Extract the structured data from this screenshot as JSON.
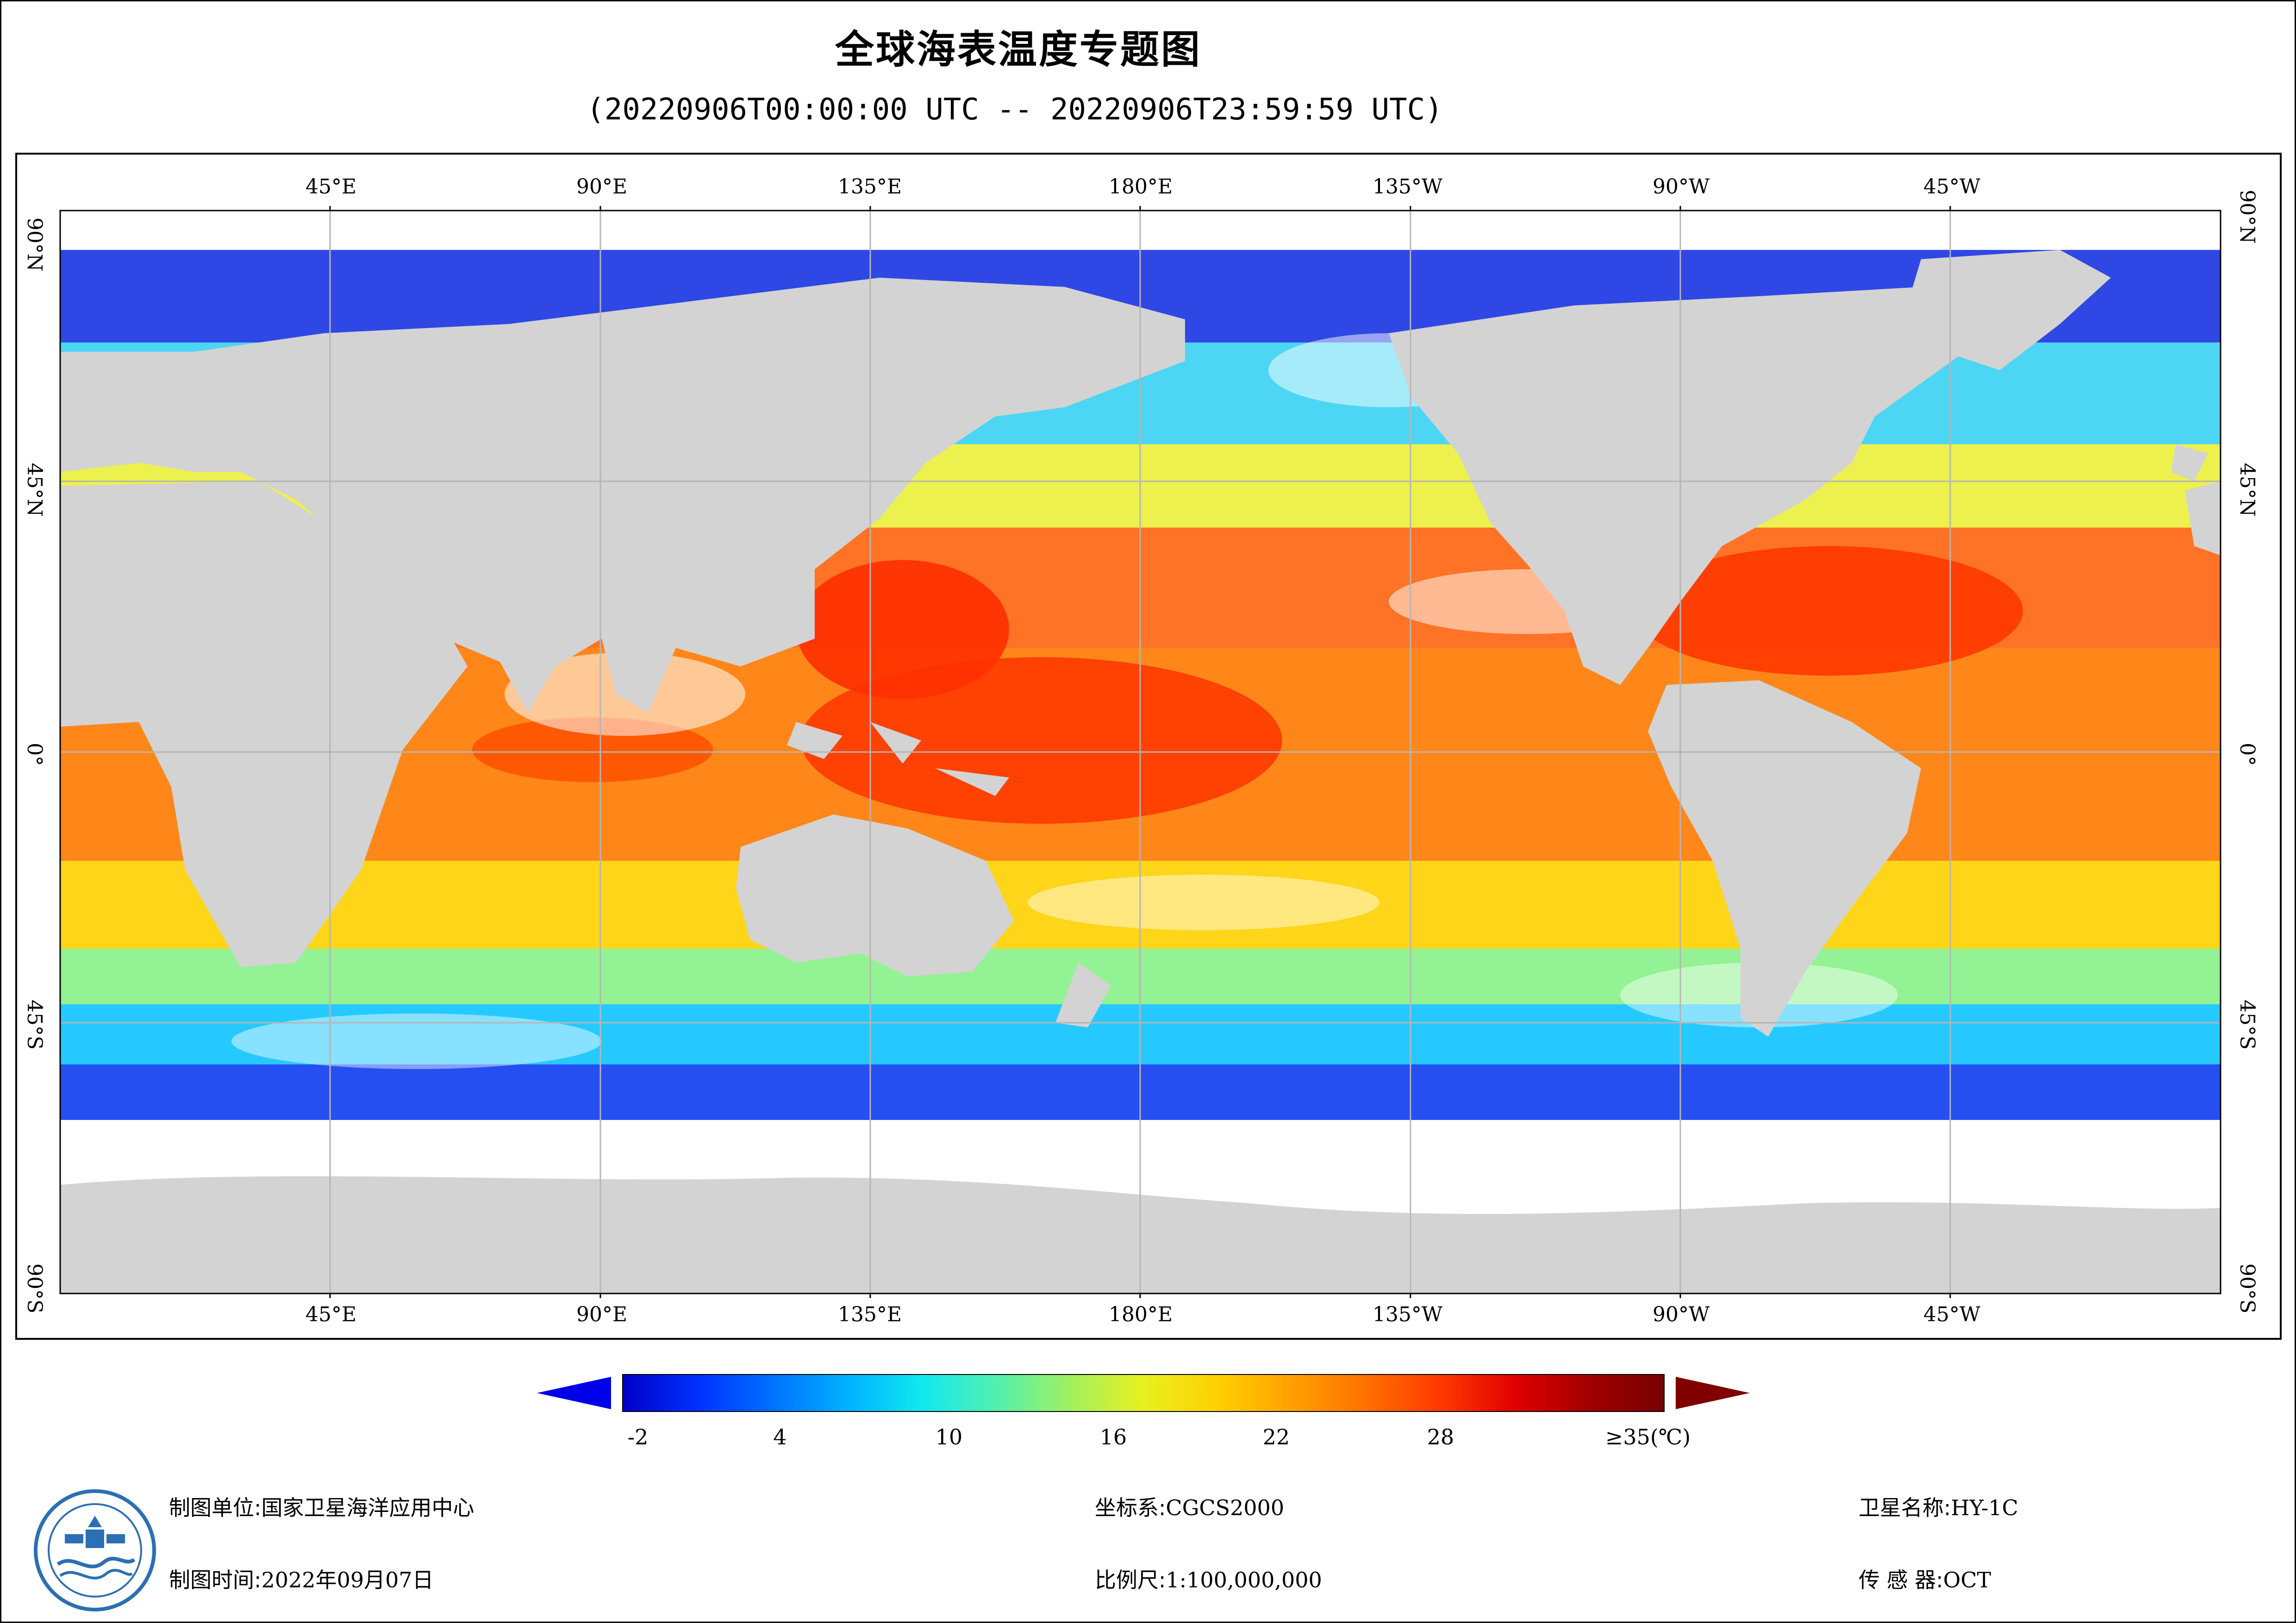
{
  "title": "全球海表温度专题图",
  "subtitle": "(20220906T00:00:00 UTC -- 20220906T23:59:59 UTC)",
  "map": {
    "top_lon_labels": [
      "45°E",
      "90°E",
      "135°E",
      "180°E",
      "135°W",
      "90°W",
      "45°W"
    ],
    "bottom_lon_labels": [
      "45°E",
      "90°E",
      "135°E",
      "180°E",
      "135°W",
      "90°W",
      "45°W"
    ],
    "left_lat_labels": [
      "90°N",
      "45°N",
      "0°",
      "45°S",
      "90°S"
    ],
    "right_lat_labels": [
      "90°N",
      "45°N",
      "0°",
      "45°S",
      "90°S"
    ],
    "land_color": "#d3d3d3",
    "nodata_color": "#ffffff",
    "gridline_color": "#b5b5b5"
  },
  "colorbar": {
    "tick_labels": [
      "-2",
      "4",
      "10",
      "16",
      "22",
      "28",
      "≥35(℃)"
    ],
    "palette": [
      "#0000c8",
      "#0030ff",
      "#0070ff",
      "#00b0ff",
      "#10e8f0",
      "#50f0b0",
      "#a0f060",
      "#e8f020",
      "#ffd000",
      "#ffa000",
      "#ff7000",
      "#ff3800",
      "#e00000",
      "#a00000",
      "#780000"
    ],
    "under_color": "#0000e8",
    "over_color": "#800000"
  },
  "footer": {
    "unit_label": "制图单位:",
    "unit_value": "国家卫星海洋应用中心",
    "time_label": "制图时间:",
    "time_value": "2022年09月07日",
    "crs_label": "坐标系:",
    "crs_value": "CGCS2000",
    "scale_label": "比例尺:",
    "scale_value": "1:100,000,000",
    "satellite_label": "卫星名称:",
    "satellite_value": "HY-1C",
    "sensor_label": "传 感 器:",
    "sensor_value": "OCT"
  },
  "logo": {
    "alt_name": "nsoas-logo"
  }
}
